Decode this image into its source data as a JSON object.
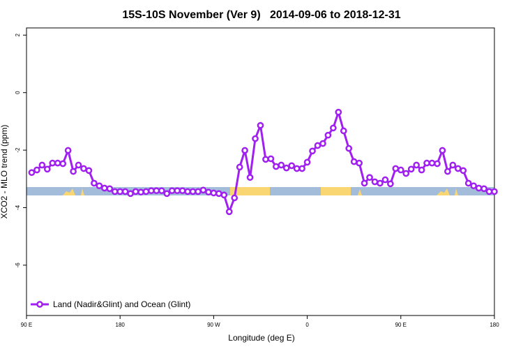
{
  "chart_data": {
    "type": "line",
    "title": "15S-10S November (Ver 9)   2014-09-06 to 2018-12-31",
    "x_label": "Longitude (deg E)",
    "y_label": "XCO2 - MLO trend (ppm)",
    "xlim": [
      90,
      540
    ],
    "ylim": [
      -7.75,
      2.25
    ],
    "xticks": [
      {
        "value": 90,
        "label": "90 E"
      },
      {
        "value": 180,
        "label": "180"
      },
      {
        "value": 270,
        "label": "90 W"
      },
      {
        "value": 360,
        "label": "0"
      },
      {
        "value": 450,
        "label": "90 E"
      },
      {
        "value": 540,
        "label": "180"
      }
    ],
    "yticks": [
      2,
      0,
      -2,
      -4,
      -6
    ],
    "legend": "bottom-left",
    "x": [
      95,
      100,
      105,
      110,
      115,
      120,
      125,
      130,
      135,
      140,
      145,
      150,
      155,
      160,
      165,
      170,
      175,
      180,
      185,
      190,
      195,
      200,
      205,
      210,
      215,
      220,
      225,
      230,
      235,
      240,
      245,
      250,
      255,
      260,
      265,
      270,
      275,
      280,
      285,
      290,
      295,
      300,
      305,
      310,
      315,
      320,
      325,
      330,
      335,
      340,
      345,
      350,
      355,
      360,
      365,
      370,
      375,
      380,
      385,
      390,
      395,
      400,
      405,
      410,
      415,
      420,
      425,
      430,
      435,
      440,
      445,
      450,
      455,
      460,
      465,
      470,
      475,
      480,
      485,
      490,
      495,
      500,
      505,
      510,
      515,
      520,
      525,
      530,
      535,
      540
    ],
    "series": [
      {
        "name": "Land (Nadir&Glint) and Ocean (Glint)",
        "color": "#a020f0",
        "values": [
          -2.78,
          -2.69,
          -2.52,
          -2.66,
          -2.45,
          -2.45,
          -2.47,
          -2.01,
          -2.74,
          -2.52,
          -2.64,
          -2.71,
          -3.15,
          -3.24,
          -3.32,
          -3.34,
          -3.44,
          -3.44,
          -3.44,
          -3.51,
          -3.44,
          -3.46,
          -3.44,
          -3.41,
          -3.41,
          -3.41,
          -3.51,
          -3.41,
          -3.41,
          -3.41,
          -3.44,
          -3.44,
          -3.44,
          -3.39,
          -3.46,
          -3.49,
          -3.51,
          -3.56,
          -4.14,
          -3.66,
          -2.59,
          -2.01,
          -2.95,
          -1.6,
          -1.14,
          -2.32,
          -2.3,
          -2.57,
          -2.52,
          -2.62,
          -2.54,
          -2.64,
          -2.64,
          -2.42,
          -2.03,
          -1.84,
          -1.77,
          -1.48,
          -1.23,
          -0.68,
          -1.33,
          -1.94,
          -2.4,
          -2.45,
          -3.15,
          -2.95,
          -3.1,
          -3.15,
          -3.03,
          -3.17,
          -2.64,
          -2.69,
          -2.81,
          -2.66,
          -2.52,
          -2.69,
          -2.45,
          -2.45,
          -2.47,
          -2.01,
          -2.74,
          -2.52,
          -2.64,
          -2.71,
          -3.15,
          -3.24,
          -3.32,
          -3.34,
          -3.44,
          -3.44
        ]
      }
    ]
  }
}
